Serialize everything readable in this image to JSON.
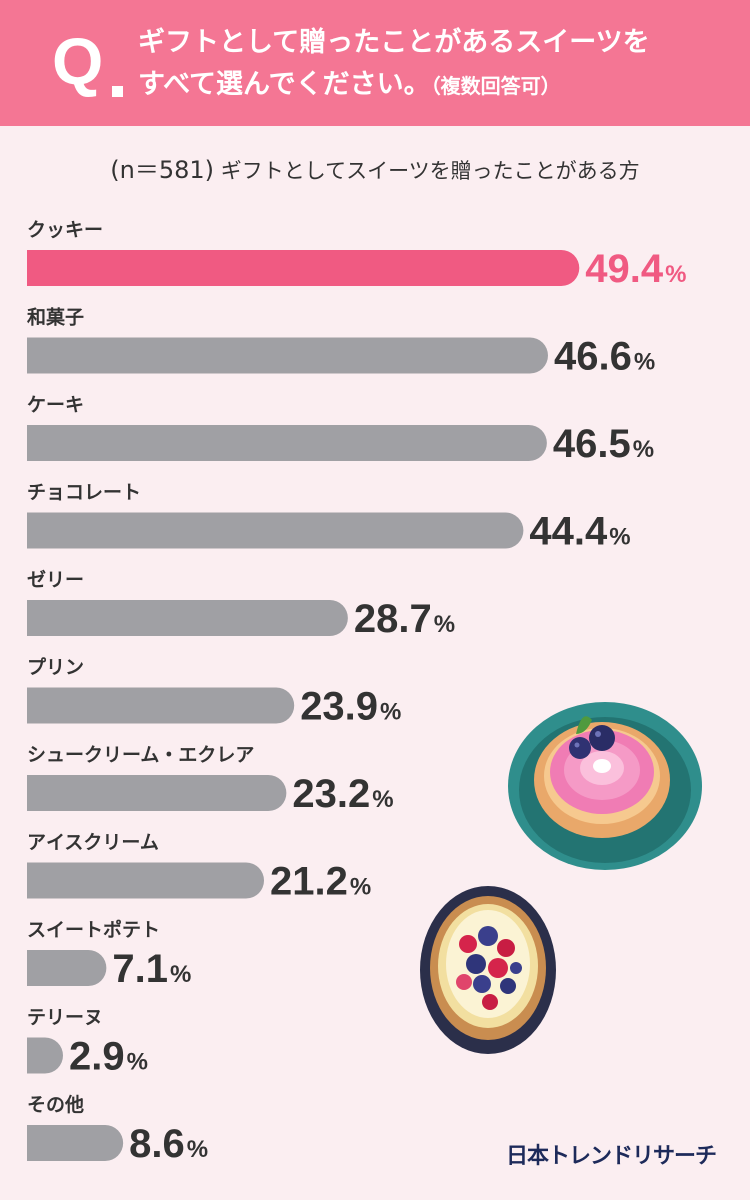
{
  "header": {
    "q_mark": "Q",
    "line1": "ギフトとして贈ったことがあるスイーツを",
    "line2": "すべて選んでください。",
    "note": "（複数回答可）"
  },
  "subtitle": {
    "sample": "(n＝581)",
    "text": "ギフトとしてスイーツを贈ったことがある方"
  },
  "brand": "日本トレンドリサーチ",
  "colors": {
    "header_bg": "#f47694",
    "page_bg": "#fbeef1",
    "highlight_bar": "#f05a82",
    "normal_bar": "#a0a0a4",
    "highlight_text": "#f05a82",
    "normal_text": "#333333"
  },
  "decorations": {
    "tart_pink": "pink-cream-tart-icon",
    "tart_berry": "berry-tart-icon"
  },
  "chart_data": {
    "type": "bar",
    "orientation": "horizontal",
    "unit": "%",
    "categories": [
      "クッキー",
      "和菓子",
      "ケーキ",
      "チョコレート",
      "ゼリー",
      "プリン",
      "シュークリーム・エクレア",
      "アイスクリーム",
      "スイートポテト",
      "テリーヌ",
      "その他"
    ],
    "values": [
      49.4,
      46.6,
      46.5,
      44.4,
      28.7,
      23.9,
      23.2,
      21.2,
      7.1,
      2.9,
      8.6
    ],
    "value_labels": [
      "49.4",
      "46.6",
      "46.5",
      "44.4",
      "28.7",
      "23.9",
      "23.2",
      "21.2",
      "7.1",
      "2.9",
      "8.6"
    ],
    "highlight_index": 0,
    "title": "",
    "xlabel": "",
    "ylabel": "",
    "xlim": [
      0,
      50
    ],
    "grid": false,
    "legend": "none"
  }
}
